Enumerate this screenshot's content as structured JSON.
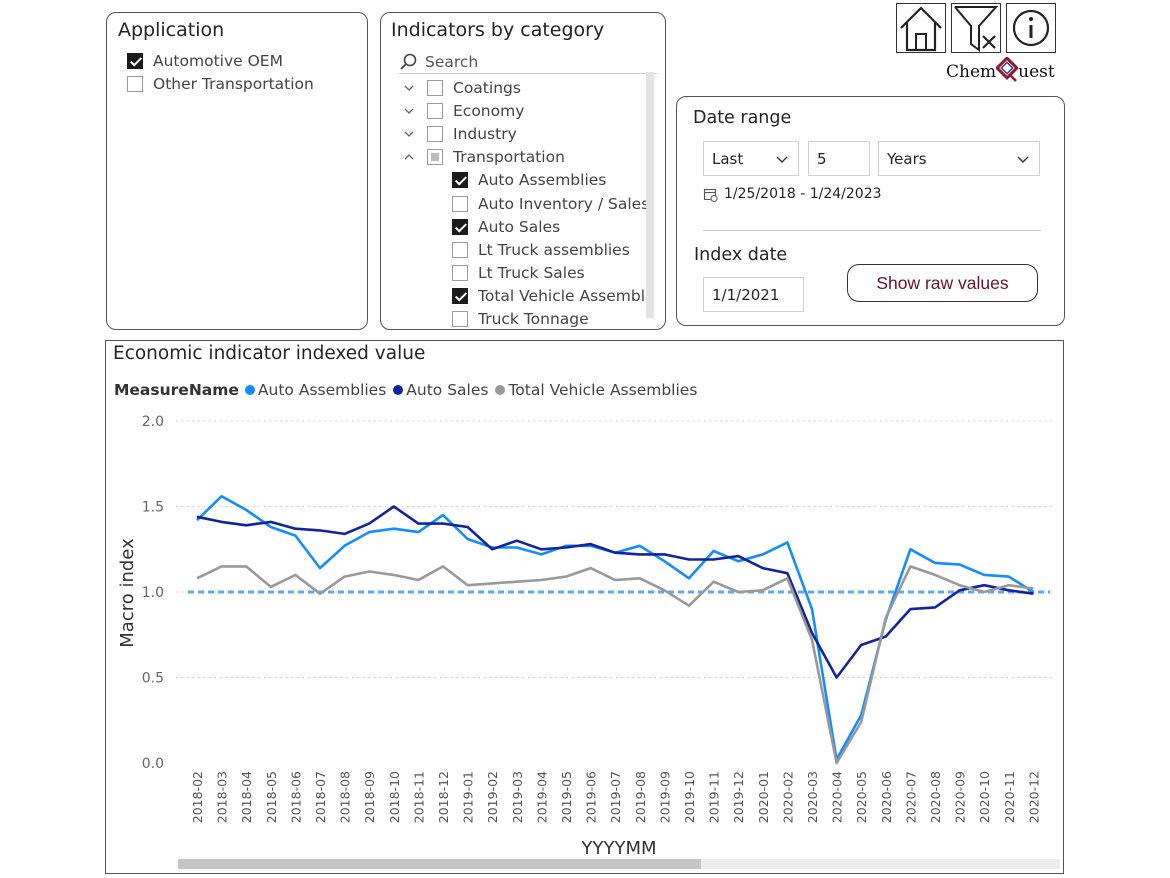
{
  "application": {
    "title": "Application",
    "options": [
      {
        "label": "Automotive OEM",
        "checked": true
      },
      {
        "label": "Other Transportation",
        "checked": false
      }
    ]
  },
  "indicators": {
    "title": "Indicators by category",
    "search_placeholder": "Search",
    "categories": [
      {
        "label": "Coatings",
        "expanded": false,
        "state": "unchecked"
      },
      {
        "label": "Economy",
        "expanded": false,
        "state": "unchecked"
      },
      {
        "label": "Industry",
        "expanded": false,
        "state": "unchecked"
      },
      {
        "label": "Transportation",
        "expanded": true,
        "state": "partial"
      }
    ],
    "items": [
      {
        "label": "Auto Assemblies",
        "checked": true
      },
      {
        "label": "Auto Inventory / Sales ...",
        "checked": false
      },
      {
        "label": "Auto Sales",
        "checked": true
      },
      {
        "label": "Lt Truck assemblies",
        "checked": false
      },
      {
        "label": "Lt Truck Sales",
        "checked": false
      },
      {
        "label": "Total Vehicle Assemblies",
        "checked": true
      },
      {
        "label": "Truck Tonnage",
        "checked": false
      }
    ]
  },
  "toolbar": {
    "home_icon": "home-icon",
    "clear_filter_icon": "clear-filter-icon",
    "info_icon": "info-icon",
    "logo_text_left": "Chem",
    "logo_text_right": "uest"
  },
  "date_range": {
    "title": "Date range",
    "mode": "Last",
    "count": "5",
    "unit": "Years",
    "range_text": "1/25/2018 - 1/24/2023",
    "index_title": "Index date",
    "index_value": "1/1/2021",
    "show_raw_label": "Show raw values"
  },
  "chart": {
    "title": "Economic indicator indexed value",
    "legend_title": "MeasureName"
  },
  "colors": {
    "auto_assemblies": "#118dff",
    "auto_sales": "#12239e",
    "total_vehicle": "#999999",
    "reference_line": "#5fa8f0",
    "brand": "#6b1025"
  },
  "chart_data": {
    "type": "line",
    "title": "Economic indicator indexed value",
    "xlabel": "YYYYMM",
    "ylabel": "Macro index",
    "ylim": [
      0,
      2
    ],
    "yticks": [
      "2.0",
      "1.5",
      "1.0",
      "0.5",
      "0.0"
    ],
    "reference_line": 1.0,
    "legend_title": "MeasureName",
    "categories": [
      "2018-02",
      "2018-03",
      "2018-04",
      "2018-05",
      "2018-06",
      "2018-07",
      "2018-08",
      "2018-09",
      "2018-10",
      "2018-11",
      "2018-12",
      "2019-01",
      "2019-02",
      "2019-03",
      "2019-04",
      "2019-05",
      "2019-06",
      "2019-07",
      "2019-08",
      "2019-09",
      "2019-10",
      "2019-11",
      "2019-12",
      "2020-01",
      "2020-02",
      "2020-03",
      "2020-04",
      "2020-05",
      "2020-06",
      "2020-07",
      "2020-08",
      "2020-09",
      "2020-10",
      "2020-11",
      "2020-12"
    ],
    "series": [
      {
        "name": "Auto Assemblies",
        "color": "#118dff",
        "values": [
          1.42,
          1.56,
          1.48,
          1.38,
          1.33,
          1.14,
          1.27,
          1.35,
          1.37,
          1.35,
          1.45,
          1.31,
          1.26,
          1.26,
          1.22,
          1.27,
          1.27,
          1.23,
          1.27,
          1.18,
          1.08,
          1.24,
          1.18,
          1.22,
          1.29,
          0.9,
          0.02,
          0.28,
          0.84,
          1.25,
          1.17,
          1.16,
          1.1,
          1.09,
          1.0
        ]
      },
      {
        "name": "Auto Sales",
        "color": "#12239e",
        "values": [
          1.44,
          1.41,
          1.39,
          1.41,
          1.37,
          1.36,
          1.34,
          1.4,
          1.5,
          1.4,
          1.4,
          1.38,
          1.25,
          1.3,
          1.25,
          1.26,
          1.28,
          1.23,
          1.22,
          1.22,
          1.19,
          1.19,
          1.21,
          1.14,
          1.11,
          0.76,
          0.5,
          0.69,
          0.74,
          0.9,
          0.91,
          1.01,
          1.04,
          1.01,
          0.99
        ]
      },
      {
        "name": "Total Vehicle Assemblies",
        "color": "#999999",
        "values": [
          1.08,
          1.15,
          1.15,
          1.03,
          1.1,
          0.99,
          1.09,
          1.12,
          1.1,
          1.07,
          1.15,
          1.04,
          1.05,
          1.06,
          1.07,
          1.09,
          1.14,
          1.07,
          1.08,
          1.01,
          0.92,
          1.06,
          1.0,
          1.01,
          1.08,
          0.72,
          0.0,
          0.24,
          0.85,
          1.15,
          1.1,
          1.04,
          1.0,
          1.04,
          1.02
        ]
      }
    ]
  }
}
